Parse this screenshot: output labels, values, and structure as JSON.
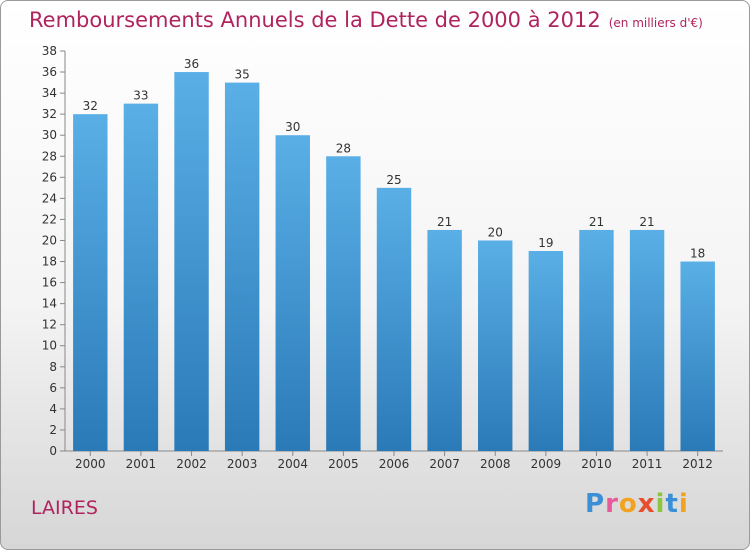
{
  "chart_data": {
    "type": "bar",
    "title": "Remboursements Annuels de la Dette de 2000 à 2012",
    "subtitle": "(en milliers d'€)",
    "categories": [
      "2000",
      "2001",
      "2002",
      "2003",
      "2004",
      "2005",
      "2006",
      "2007",
      "2008",
      "2009",
      "2010",
      "2011",
      "2012"
    ],
    "values": [
      32,
      33,
      36,
      35,
      30,
      28,
      25,
      21,
      20,
      19,
      21,
      21,
      18
    ],
    "ylim": [
      0,
      38
    ],
    "yticks": [
      0,
      2,
      4,
      6,
      8,
      10,
      12,
      14,
      16,
      18,
      20,
      22,
      24,
      26,
      28,
      30,
      32,
      34,
      36,
      38
    ],
    "grid": false,
    "legend": "none"
  },
  "footer": {
    "place": "LAIRES",
    "brand": "Proxiti"
  },
  "colors": {
    "title": "#b0245e",
    "bar_top": "#5aafe6",
    "bar_bottom": "#2a7ab8"
  }
}
